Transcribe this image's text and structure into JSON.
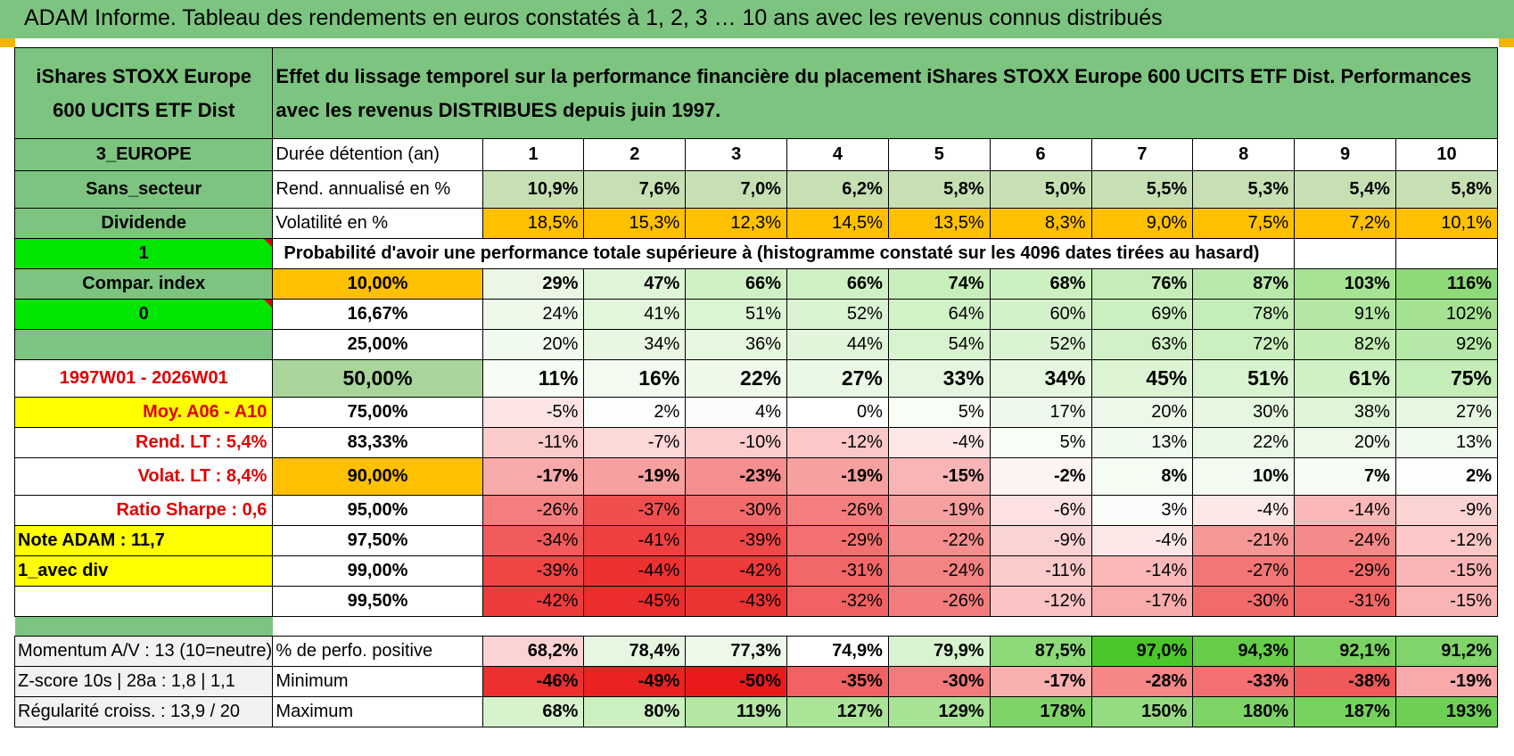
{
  "title": "ADAM Informe. Tableau des rendements en euros constatés à 1, 2, 3 … 10 ans avec les revenus connus distribués",
  "fund": {
    "name": "iShares STOXX Europe 600 UCITS ETF Dist",
    "description": "Effet du lissage temporel sur la performance financière du placement iShares STOXX Europe 600 UCITS ETF Dist. Performances avec les revenus DISTRIBUES depuis juin 1997."
  },
  "side": {
    "region": "3_EUROPE",
    "sector": "Sans_secteur",
    "dividend": "Dividende",
    "flag1": "1",
    "compar": "Compar. index",
    "flag0": "0",
    "period": "1997W01 - 2026W01",
    "moy": "Moy. A06 - A10",
    "rend_lt": "Rend. LT :   5,4%",
    "volat_lt": "Volat. LT :   8,4%",
    "sharpe": "Ratio Sharpe :    0,6",
    "note": "Note ADAM : 11,7",
    "mode": "1_avec div",
    "momentum": "Momentum A/V : 13 (10=neutre)",
    "zscore": "Z-score 10s | 28a : 1,8 | 1,1",
    "regul": "Régularité croiss. : 13,9 / 20"
  },
  "labels": {
    "duree": "Durée détention (an)",
    "rend": "Rend. annualisé en %",
    "volat": "Volatilité en %",
    "proba": "Probabilité d'avoir une performance totale supérieure à (histogramme constaté sur les 4096 dates tirées au hasard)",
    "pos": "% de perfo. positive",
    "min": "Minimum",
    "max": "Maximum"
  },
  "years": [
    "1",
    "2",
    "3",
    "4",
    "5",
    "6",
    "7",
    "8",
    "9",
    "10"
  ],
  "rend": [
    "10,9%",
    "7,6%",
    "7,0%",
    "6,2%",
    "5,8%",
    "5,0%",
    "5,5%",
    "5,3%",
    "5,4%",
    "5,8%"
  ],
  "volat": [
    "18,5%",
    "15,3%",
    "12,3%",
    "14,5%",
    "13,5%",
    "8,3%",
    "9,0%",
    "7,5%",
    "7,2%",
    "10,1%"
  ],
  "prob_rows": [
    {
      "pct": "10,00%",
      "vals": [
        "29%",
        "47%",
        "66%",
        "66%",
        "74%",
        "68%",
        "76%",
        "87%",
        "103%",
        "116%"
      ]
    },
    {
      "pct": "16,67%",
      "vals": [
        "24%",
        "41%",
        "51%",
        "52%",
        "64%",
        "60%",
        "69%",
        "78%",
        "91%",
        "102%"
      ]
    },
    {
      "pct": "25,00%",
      "vals": [
        "20%",
        "34%",
        "36%",
        "44%",
        "54%",
        "52%",
        "63%",
        "72%",
        "82%",
        "92%"
      ]
    },
    {
      "pct": "50,00%",
      "vals": [
        "11%",
        "16%",
        "22%",
        "27%",
        "33%",
        "34%",
        "45%",
        "51%",
        "61%",
        "75%"
      ]
    },
    {
      "pct": "75,00%",
      "vals": [
        "-5%",
        "2%",
        "4%",
        "0%",
        "5%",
        "17%",
        "20%",
        "30%",
        "38%",
        "27%"
      ]
    },
    {
      "pct": "83,33%",
      "vals": [
        "-11%",
        "-7%",
        "-10%",
        "-12%",
        "-4%",
        "5%",
        "13%",
        "22%",
        "20%",
        "13%"
      ]
    },
    {
      "pct": "90,00%",
      "vals": [
        "-17%",
        "-19%",
        "-23%",
        "-19%",
        "-15%",
        "-2%",
        "8%",
        "10%",
        "7%",
        "2%"
      ]
    },
    {
      "pct": "95,00%",
      "vals": [
        "-26%",
        "-37%",
        "-30%",
        "-26%",
        "-19%",
        "-6%",
        "3%",
        "-4%",
        "-14%",
        "-9%"
      ]
    },
    {
      "pct": "97,50%",
      "vals": [
        "-34%",
        "-41%",
        "-39%",
        "-29%",
        "-22%",
        "-9%",
        "-4%",
        "-21%",
        "-24%",
        "-12%"
      ]
    },
    {
      "pct": "99,00%",
      "vals": [
        "-39%",
        "-44%",
        "-42%",
        "-31%",
        "-24%",
        "-11%",
        "-14%",
        "-27%",
        "-29%",
        "-15%"
      ]
    },
    {
      "pct": "99,50%",
      "vals": [
        "-42%",
        "-45%",
        "-43%",
        "-32%",
        "-26%",
        "-12%",
        "-17%",
        "-30%",
        "-31%",
        "-15%"
      ]
    }
  ],
  "pos": [
    "68,2%",
    "78,4%",
    "77,3%",
    "74,9%",
    "79,9%",
    "87,5%",
    "97,0%",
    "94,3%",
    "92,1%",
    "91,2%"
  ],
  "min": [
    "-46%",
    "-49%",
    "-50%",
    "-35%",
    "-30%",
    "-17%",
    "-28%",
    "-33%",
    "-38%",
    "-19%"
  ],
  "max": [
    "68%",
    "80%",
    "119%",
    "127%",
    "129%",
    "178%",
    "150%",
    "180%",
    "187%",
    "193%"
  ],
  "colors": {
    "header_green": "#7cc47f",
    "light_green": "#a9d59b",
    "bright_green": "#00e600",
    "yellow": "#ffff00",
    "orange": "#ffc000",
    "red_text": "#e00000"
  }
}
